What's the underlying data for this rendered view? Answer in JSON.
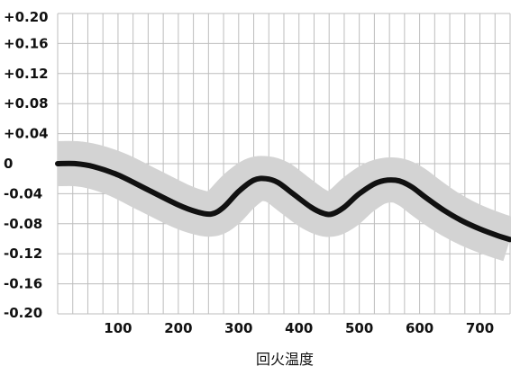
{
  "chart_data": {
    "type": "line",
    "title": "",
    "xlabel": "回火温度",
    "ylabel": "",
    "xlim": [
      0,
      750
    ],
    "ylim": [
      -0.2,
      0.2
    ],
    "grid": true,
    "legend": "none",
    "x_ticks": [
      100,
      200,
      300,
      400,
      500,
      600,
      700
    ],
    "x_tick_labels": [
      "100",
      "200",
      "300",
      "400",
      "500",
      "600",
      "700"
    ],
    "y_ticks": [
      0.2,
      0.16,
      0.12,
      0.08,
      0.04,
      0,
      -0.04,
      -0.08,
      -0.12,
      -0.16,
      -0.2
    ],
    "y_tick_labels": [
      "+0.20",
      "+0.16",
      "+0.12",
      "+0.08",
      "+0.04",
      "0",
      "-0.04",
      "-0.08",
      "-0.12",
      "-0.16",
      "-0.20"
    ],
    "series": [
      {
        "x": [
          0,
          30,
          60,
          100,
          150,
          200,
          230,
          255,
          275,
          300,
          325,
          345,
          365,
          390,
          420,
          440,
          455,
          475,
          500,
          530,
          560,
          585,
          610,
          640,
          670,
          700,
          730,
          750
        ],
        "y": [
          0.0,
          0.0,
          -0.004,
          -0.015,
          -0.035,
          -0.055,
          -0.064,
          -0.067,
          -0.058,
          -0.037,
          -0.022,
          -0.02,
          -0.025,
          -0.04,
          -0.058,
          -0.066,
          -0.067,
          -0.058,
          -0.04,
          -0.025,
          -0.022,
          -0.03,
          -0.045,
          -0.062,
          -0.076,
          -0.087,
          -0.096,
          -0.101
        ],
        "band": 0.03
      }
    ],
    "colors": {
      "line": "#111111",
      "band": "#d3d3d3",
      "grid": "#bdbdbd"
    }
  }
}
